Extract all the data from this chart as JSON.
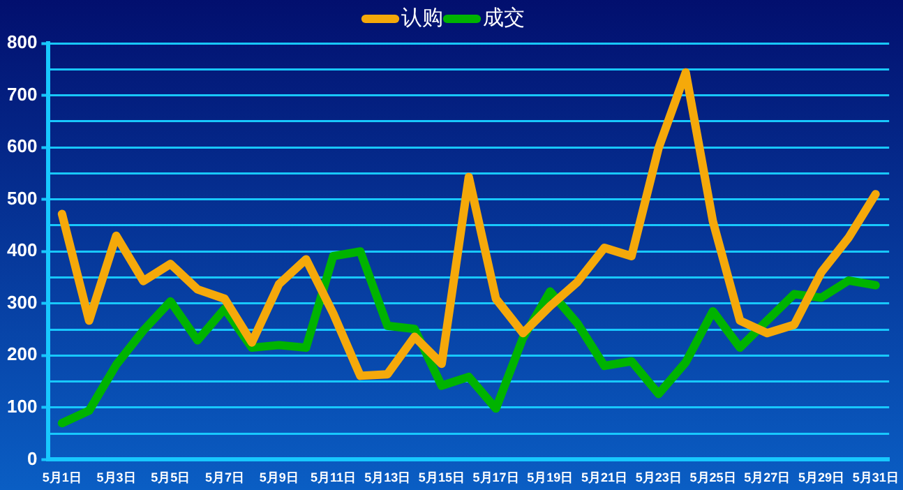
{
  "chart_data": {
    "type": "line",
    "categories": [
      "5月1日",
      null,
      "5月3日",
      null,
      "5月5日",
      null,
      "5月7日",
      null,
      "5月9日",
      null,
      "5月11日",
      null,
      "5月13日",
      null,
      "5月15日",
      null,
      "5月17日",
      null,
      "5月19日",
      null,
      "5月21日",
      null,
      "5月23日",
      null,
      "5月25日",
      null,
      "5月27日",
      null,
      "5月29日",
      null,
      "5月31日"
    ],
    "series": [
      {
        "name": "认购",
        "color": "#f5a90a",
        "values": [
          472,
          267,
          430,
          343,
          376,
          327,
          309,
          225,
          337,
          385,
          281,
          161,
          164,
          236,
          184,
          543,
          309,
          243,
          295,
          341,
          407,
          391,
          599,
          744,
          458,
          267,
          243,
          259,
          360,
          426,
          510
        ]
      },
      {
        "name": "成交",
        "color": "#00b300",
        "values": [
          70,
          94,
          182,
          248,
          304,
          229,
          290,
          215,
          220,
          215,
          391,
          400,
          257,
          251,
          142,
          159,
          98,
          234,
          323,
          262,
          180,
          189,
          126,
          187,
          285,
          215,
          267,
          318,
          311,
          344,
          335
        ]
      }
    ],
    "ylim": [
      0,
      800
    ],
    "yticks": [
      0,
      {
        "value": 50,
        "label": null
      },
      100,
      {
        "value": 150,
        "label": null
      },
      200,
      {
        "value": 250,
        "label": null
      },
      300,
      {
        "value": 350,
        "label": null
      },
      400,
      {
        "value": 450,
        "label": null
      },
      500,
      {
        "value": 550,
        "label": null
      },
      600,
      {
        "value": 650,
        "label": null
      },
      700,
      {
        "value": 750,
        "label": null
      },
      800
    ],
    "grid": "y",
    "legend": "top",
    "marker": "none",
    "line_style": "solid"
  }
}
